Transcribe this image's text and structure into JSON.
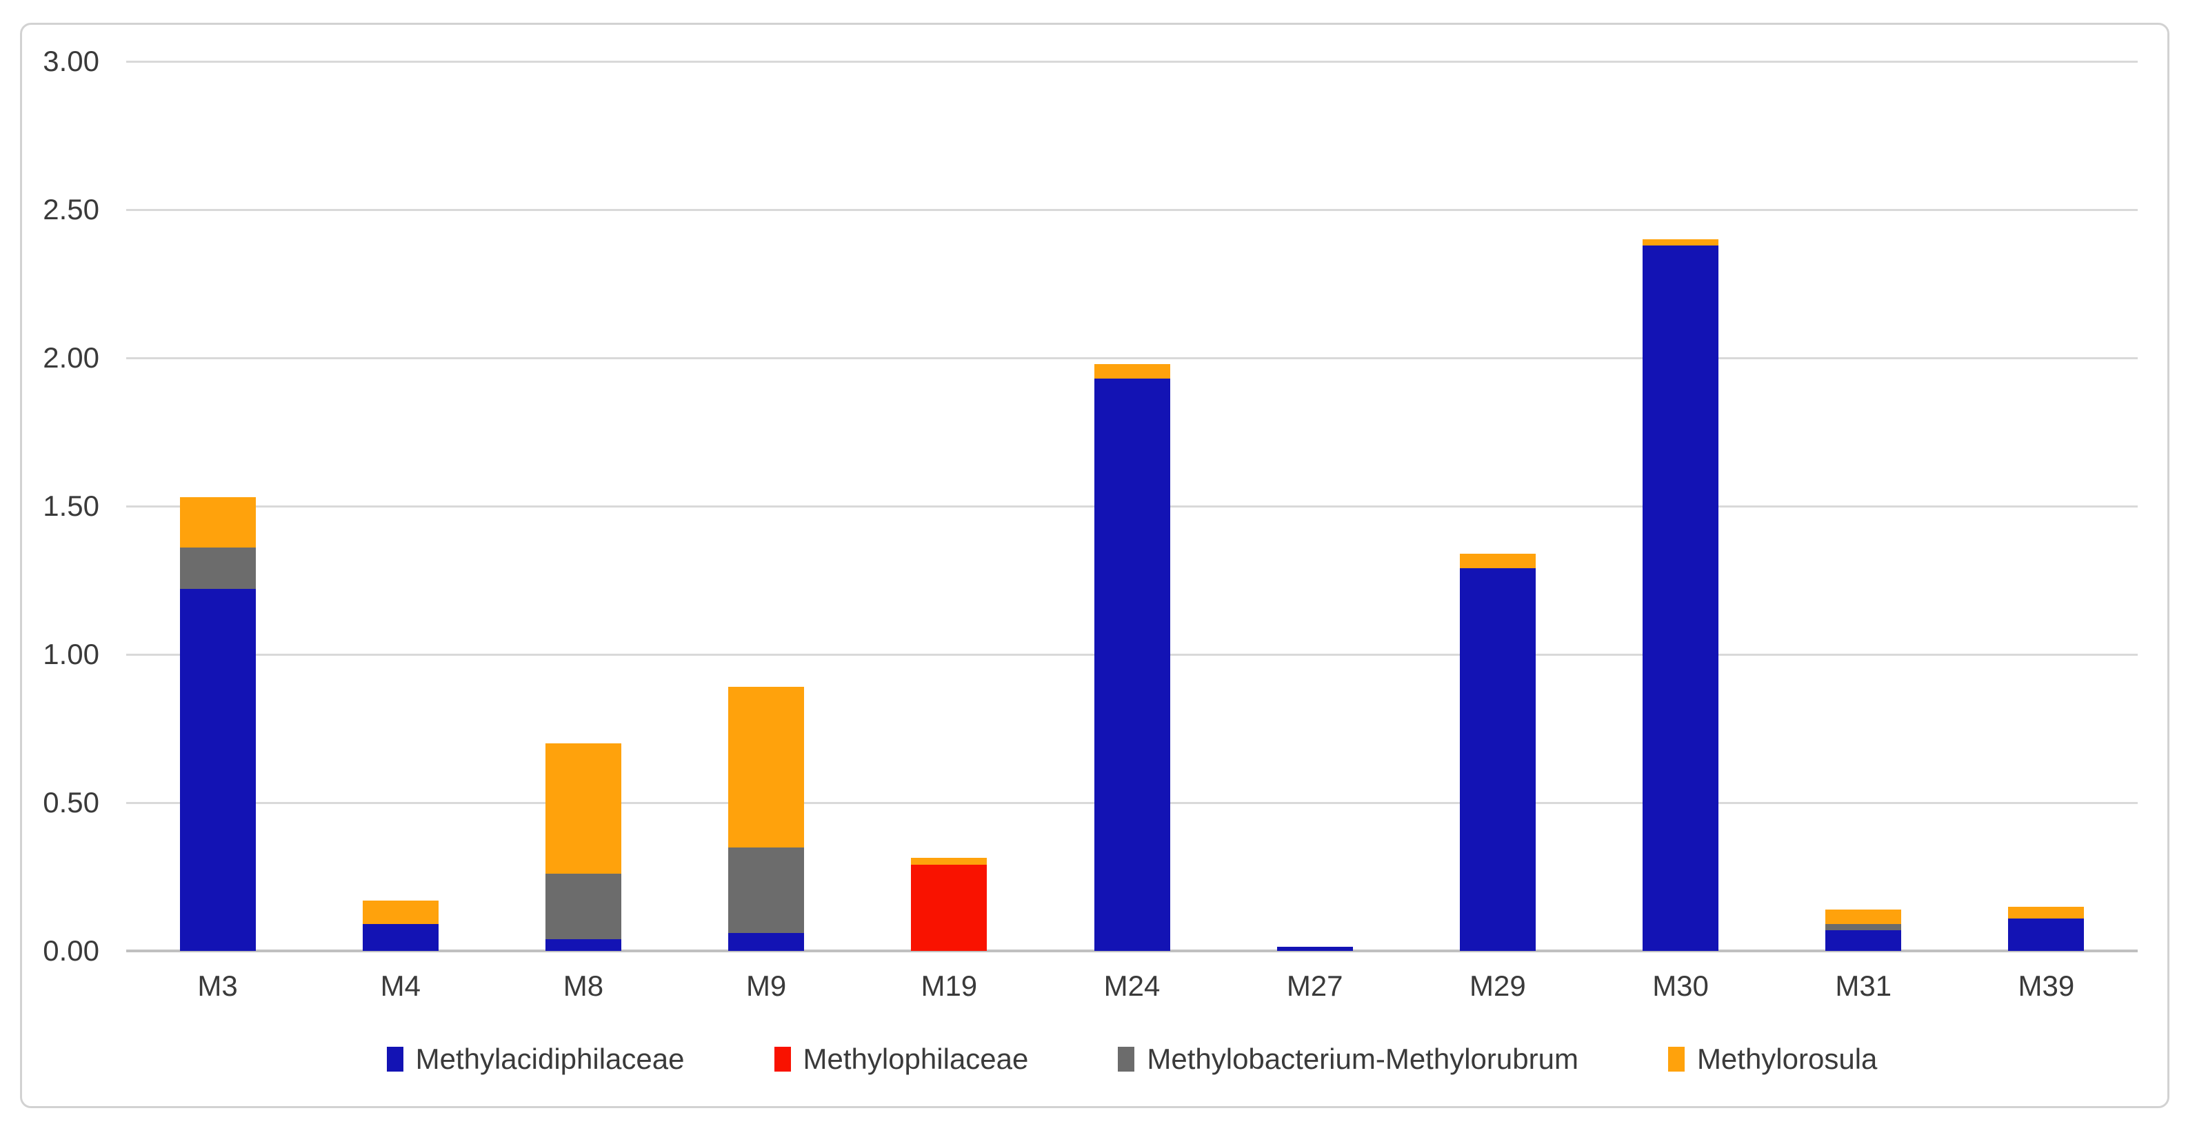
{
  "chart_data": {
    "type": "bar",
    "stacked": true,
    "title": "",
    "xlabel": "",
    "ylabel": "",
    "grid": true,
    "legend_position": "bottom",
    "ylim": [
      0,
      3
    ],
    "ytick_step": 0.5,
    "ytick_labels": [
      "0.00",
      "0.50",
      "1.00",
      "1.50",
      "2.00",
      "2.50",
      "3.00"
    ],
    "categories": [
      "M3",
      "M4",
      "M8",
      "M9",
      "M19",
      "M24",
      "M27",
      "M29",
      "M30",
      "M31",
      "M39"
    ],
    "series": [
      {
        "name": "Methylacidiphilaceae",
        "color": "#1313b4",
        "values": [
          1.22,
          0.09,
          0.04,
          0.06,
          0,
          1.93,
          0.015,
          1.29,
          2.38,
          0.07,
          0.11
        ]
      },
      {
        "name": "Methylophilaceae",
        "color": "#f91200",
        "values": [
          0,
          0,
          0,
          0,
          0.29,
          0,
          0,
          0,
          0,
          0,
          0
        ]
      },
      {
        "name": "Methylobacterium-Methylorubrum",
        "color": "#6c6c6c",
        "values": [
          0.14,
          0,
          0.22,
          0.29,
          0,
          0,
          0,
          0,
          0,
          0.02,
          0
        ]
      },
      {
        "name": "Methylorosula",
        "color": "#ffa20c",
        "values": [
          0.17,
          0.08,
          0.44,
          0.54,
          0.025,
          0.05,
          0,
          0.05,
          0.02,
          0.05,
          0.04
        ]
      }
    ],
    "totals": [
      1.53,
      0.17,
      0.7,
      0.89,
      0.315,
      1.98,
      0.015,
      1.34,
      2.4,
      0.14,
      0.15
    ]
  },
  "colors": {
    "gridline": "#d9d9d9",
    "axis_line": "#c0c0c0",
    "frame_border": "#d2d2d2",
    "text": "#3a3a3a",
    "background": "#ffffff"
  }
}
